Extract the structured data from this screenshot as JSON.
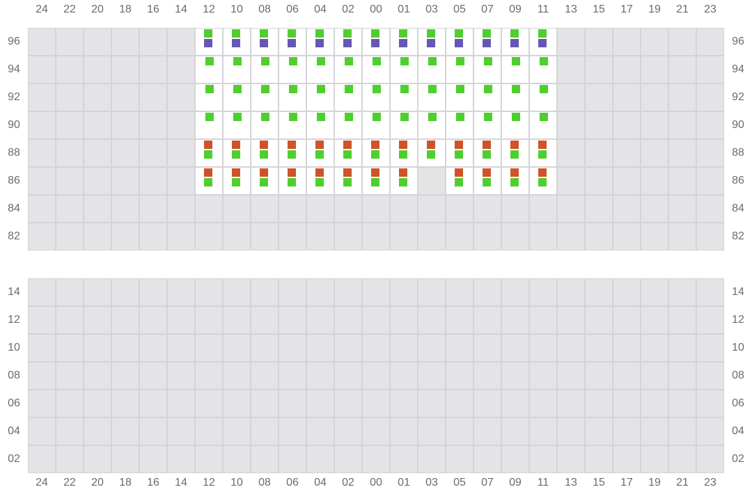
{
  "columns": [
    "24",
    "22",
    "20",
    "18",
    "16",
    "14",
    "12",
    "10",
    "08",
    "06",
    "04",
    "02",
    "00",
    "01",
    "03",
    "05",
    "07",
    "09",
    "11",
    "13",
    "15",
    "17",
    "19",
    "21",
    "23"
  ],
  "colors": {
    "green": "#4fcf2f",
    "purple": "#6658b2",
    "orange": "#d0522a"
  },
  "top_grid": {
    "rows": [
      "96",
      "94",
      "92",
      "90",
      "88",
      "86",
      "84",
      "82"
    ],
    "active_columns": [
      "12",
      "10",
      "08",
      "06",
      "04",
      "02",
      "00",
      "01",
      "03",
      "05",
      "07",
      "09",
      "11"
    ],
    "row_markers": [
      {
        "row": "96",
        "markers": [
          "green",
          "purple"
        ],
        "empty_columns": []
      },
      {
        "row": "94",
        "markers": [
          "green"
        ],
        "empty_columns": []
      },
      {
        "row": "92",
        "markers": [
          "green"
        ],
        "empty_columns": []
      },
      {
        "row": "90",
        "markers": [
          "green"
        ],
        "empty_columns": []
      },
      {
        "row": "88",
        "markers": [
          "orange",
          "green"
        ],
        "empty_columns": []
      },
      {
        "row": "86",
        "markers": [
          "orange",
          "green"
        ],
        "empty_columns": [
          "03"
        ]
      }
    ]
  },
  "bottom_grid": {
    "rows": [
      "14",
      "12",
      "10",
      "08",
      "06",
      "04",
      "02"
    ]
  }
}
